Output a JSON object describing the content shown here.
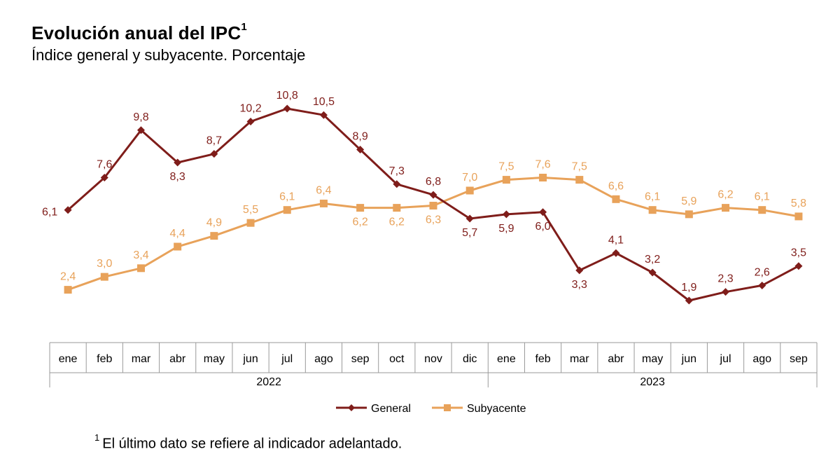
{
  "header": {
    "title": "Evolución anual del IPC",
    "title_sup": "1",
    "subtitle": "Índice general y subyacente. Porcentaje"
  },
  "footnote": {
    "sup": "1",
    "text": "El último dato se refiere al indicador adelantado."
  },
  "colors": {
    "general": "#7f1d1a",
    "subyacente": "#e8a25a",
    "axis": "#9a9a9a"
  },
  "chart_data": {
    "type": "line",
    "title": "Evolución anual del IPC",
    "subtitle": "Índice general y subyacente. Porcentaje",
    "categories": [
      "ene",
      "feb",
      "mar",
      "abr",
      "may",
      "jun",
      "jul",
      "ago",
      "sep",
      "oct",
      "nov",
      "dic",
      "ene",
      "feb",
      "mar",
      "abr",
      "may",
      "jun",
      "jul",
      "ago",
      "sep"
    ],
    "year_groups": [
      {
        "label": "2022",
        "start": 0,
        "end": 11
      },
      {
        "label": "2023",
        "start": 12,
        "end": 20
      }
    ],
    "series": [
      {
        "name": "General",
        "marker": "diamond",
        "values": [
          6.1,
          7.6,
          9.8,
          8.3,
          8.7,
          10.2,
          10.8,
          10.5,
          8.9,
          7.3,
          6.8,
          5.7,
          5.9,
          6.0,
          3.3,
          4.1,
          3.2,
          1.9,
          2.3,
          2.6,
          3.5
        ],
        "labels": [
          "6,1",
          "7,6",
          "9,8",
          "8,3",
          "8,7",
          "10,2",
          "10,8",
          "10,5",
          "8,9",
          "7,3",
          "6,8",
          "5,7",
          "5,9",
          "6,0",
          "3,3",
          "4,1",
          "3,2",
          "1,9",
          "2,3",
          "2,6",
          "3,5"
        ],
        "label_pos": [
          "below-left",
          "above",
          "above",
          "below",
          "above",
          "above",
          "above",
          "above",
          "above",
          "above",
          "above",
          "below",
          "below",
          "below",
          "below",
          "above",
          "above",
          "above",
          "above",
          "above",
          "above"
        ]
      },
      {
        "name": "Subyacente",
        "marker": "square",
        "values": [
          2.4,
          3.0,
          3.4,
          4.4,
          4.9,
          5.5,
          6.1,
          6.4,
          6.2,
          6.2,
          6.3,
          7.0,
          7.5,
          7.6,
          7.5,
          6.6,
          6.1,
          5.9,
          6.2,
          6.1,
          5.8
        ],
        "labels": [
          "2,4",
          "3,0",
          "3,4",
          "4,4",
          "4,9",
          "5,5",
          "6,1",
          "6,4",
          "6,2",
          "6,2",
          "6,3",
          "7,0",
          "7,5",
          "7,6",
          "7,5",
          "6,6",
          "6,1",
          "5,9",
          "6,2",
          "6,1",
          "5,8"
        ],
        "label_pos": [
          "above",
          "above",
          "above",
          "above",
          "above",
          "above",
          "above",
          "above",
          "below",
          "below",
          "below",
          "above",
          "above",
          "above",
          "above",
          "above",
          "above",
          "above",
          "above",
          "above",
          "above"
        ]
      }
    ],
    "ylim": [
      1.9,
      10.8
    ],
    "legend": "bottom-center",
    "grid": false
  }
}
